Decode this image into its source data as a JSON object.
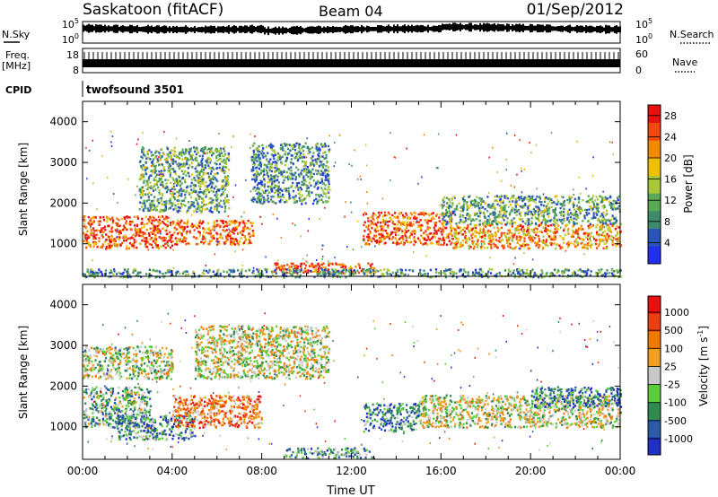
{
  "header": {
    "title": "Saskatoon (fitACF)",
    "beam": "Beam 04",
    "date": "01/Sep/2012"
  },
  "noise_panel": {
    "left_label": "N.Sky",
    "right_label": "N.Search",
    "ticks": [
      "10^5",
      "10^0"
    ]
  },
  "freq_panel": {
    "left_label_1": "Freq.",
    "left_label_2": "[MHz]",
    "left_ticks": [
      "18",
      "8"
    ],
    "right_ticks": [
      "60",
      "0"
    ],
    "right_label": "Nave"
  },
  "cpid_panel": {
    "label": "CPID",
    "value": "twofsound 3501"
  },
  "colors": {
    "power_scale": [
      "#2030ee",
      "#2a55b8",
      "#3f8a6a",
      "#5aaa55",
      "#a8c83a",
      "#f0c000",
      "#f08a00",
      "#f04a10",
      "#e81010"
    ],
    "velocity_scale": [
      "#2030c0",
      "#2a5aa8",
      "#2f8a50",
      "#5ccd3a",
      "#c8c8c8",
      "#f0a020",
      "#f07a00",
      "#e84010",
      "#e81010"
    ]
  },
  "chart_data": [
    {
      "type": "heatmap",
      "name": "power",
      "ylabel": "Slant Range [km]",
      "yticks": [
        1000,
        2000,
        3000,
        4000
      ],
      "ylim": [
        200,
        4500
      ],
      "xlim": [
        0,
        24
      ],
      "xticks": [
        "00:00",
        "04:00",
        "08:00",
        "12:00",
        "16:00",
        "20:00",
        "00:00"
      ],
      "colorbar_label": "Power [dB]",
      "colorbar_ticks": [
        4,
        8,
        12,
        16,
        20,
        24,
        28
      ],
      "colorbar_range": [
        0,
        30
      ],
      "bands": [
        {
          "x": [
            0,
            4
          ],
          "y": [
            900,
            1700
          ],
          "level": 0.85
        },
        {
          "x": [
            4,
            7.6
          ],
          "y": [
            1000,
            1600
          ],
          "level": 0.8
        },
        {
          "x": [
            2.5,
            6.5
          ],
          "y": [
            1800,
            3400
          ],
          "level": 0.35
        },
        {
          "x": [
            7.5,
            11
          ],
          "y": [
            2000,
            3500
          ],
          "level": 0.3
        },
        {
          "x": [
            8.5,
            13
          ],
          "y": [
            300,
            550
          ],
          "level": 0.85
        },
        {
          "x": [
            12.5,
            16.5
          ],
          "y": [
            1000,
            1800
          ],
          "level": 0.8
        },
        {
          "x": [
            16.5,
            24
          ],
          "y": [
            900,
            1500
          ],
          "level": 0.7
        },
        {
          "x": [
            16,
            24
          ],
          "y": [
            1500,
            2200
          ],
          "level": 0.35
        },
        {
          "x": [
            0,
            24
          ],
          "y": [
            200,
            400
          ],
          "level": 0.3
        }
      ]
    },
    {
      "type": "heatmap",
      "name": "velocity",
      "ylabel": "Slant Range [km]",
      "yticks": [
        1000,
        2000,
        3000,
        4000
      ],
      "ylim": [
        200,
        4500
      ],
      "xlim": [
        0,
        24
      ],
      "xticks": [
        "00:00",
        "04:00",
        "08:00",
        "12:00",
        "16:00",
        "20:00",
        "00:00"
      ],
      "xlabel": "Time UT",
      "colorbar_label": "Velocity [m s^-1]",
      "colorbar_ticks": [
        "1000",
        "500",
        "100",
        "25",
        "-25",
        "-100",
        "-500",
        "-1000"
      ],
      "colorbar_range": [
        -1200,
        1200
      ],
      "bands": [
        {
          "x": [
            0,
            3
          ],
          "y": [
            1000,
            2000
          ],
          "level": 0.35
        },
        {
          "x": [
            1.5,
            5
          ],
          "y": [
            700,
            1300
          ],
          "level": 0.25
        },
        {
          "x": [
            4,
            8
          ],
          "y": [
            1000,
            1800
          ],
          "level": 0.75
        },
        {
          "x": [
            0,
            4
          ],
          "y": [
            2200,
            3000
          ],
          "level": 0.45
        },
        {
          "x": [
            5,
            11
          ],
          "y": [
            2200,
            3500
          ],
          "level": 0.5
        },
        {
          "x": [
            12.5,
            15
          ],
          "y": [
            900,
            1600
          ],
          "level": 0.25
        },
        {
          "x": [
            15,
            24
          ],
          "y": [
            1000,
            1800
          ],
          "level": 0.5
        },
        {
          "x": [
            9,
            13
          ],
          "y": [
            250,
            500
          ],
          "level": 0.3
        },
        {
          "x": [
            20,
            24
          ],
          "y": [
            1500,
            2000
          ],
          "level": 0.25
        }
      ]
    }
  ]
}
